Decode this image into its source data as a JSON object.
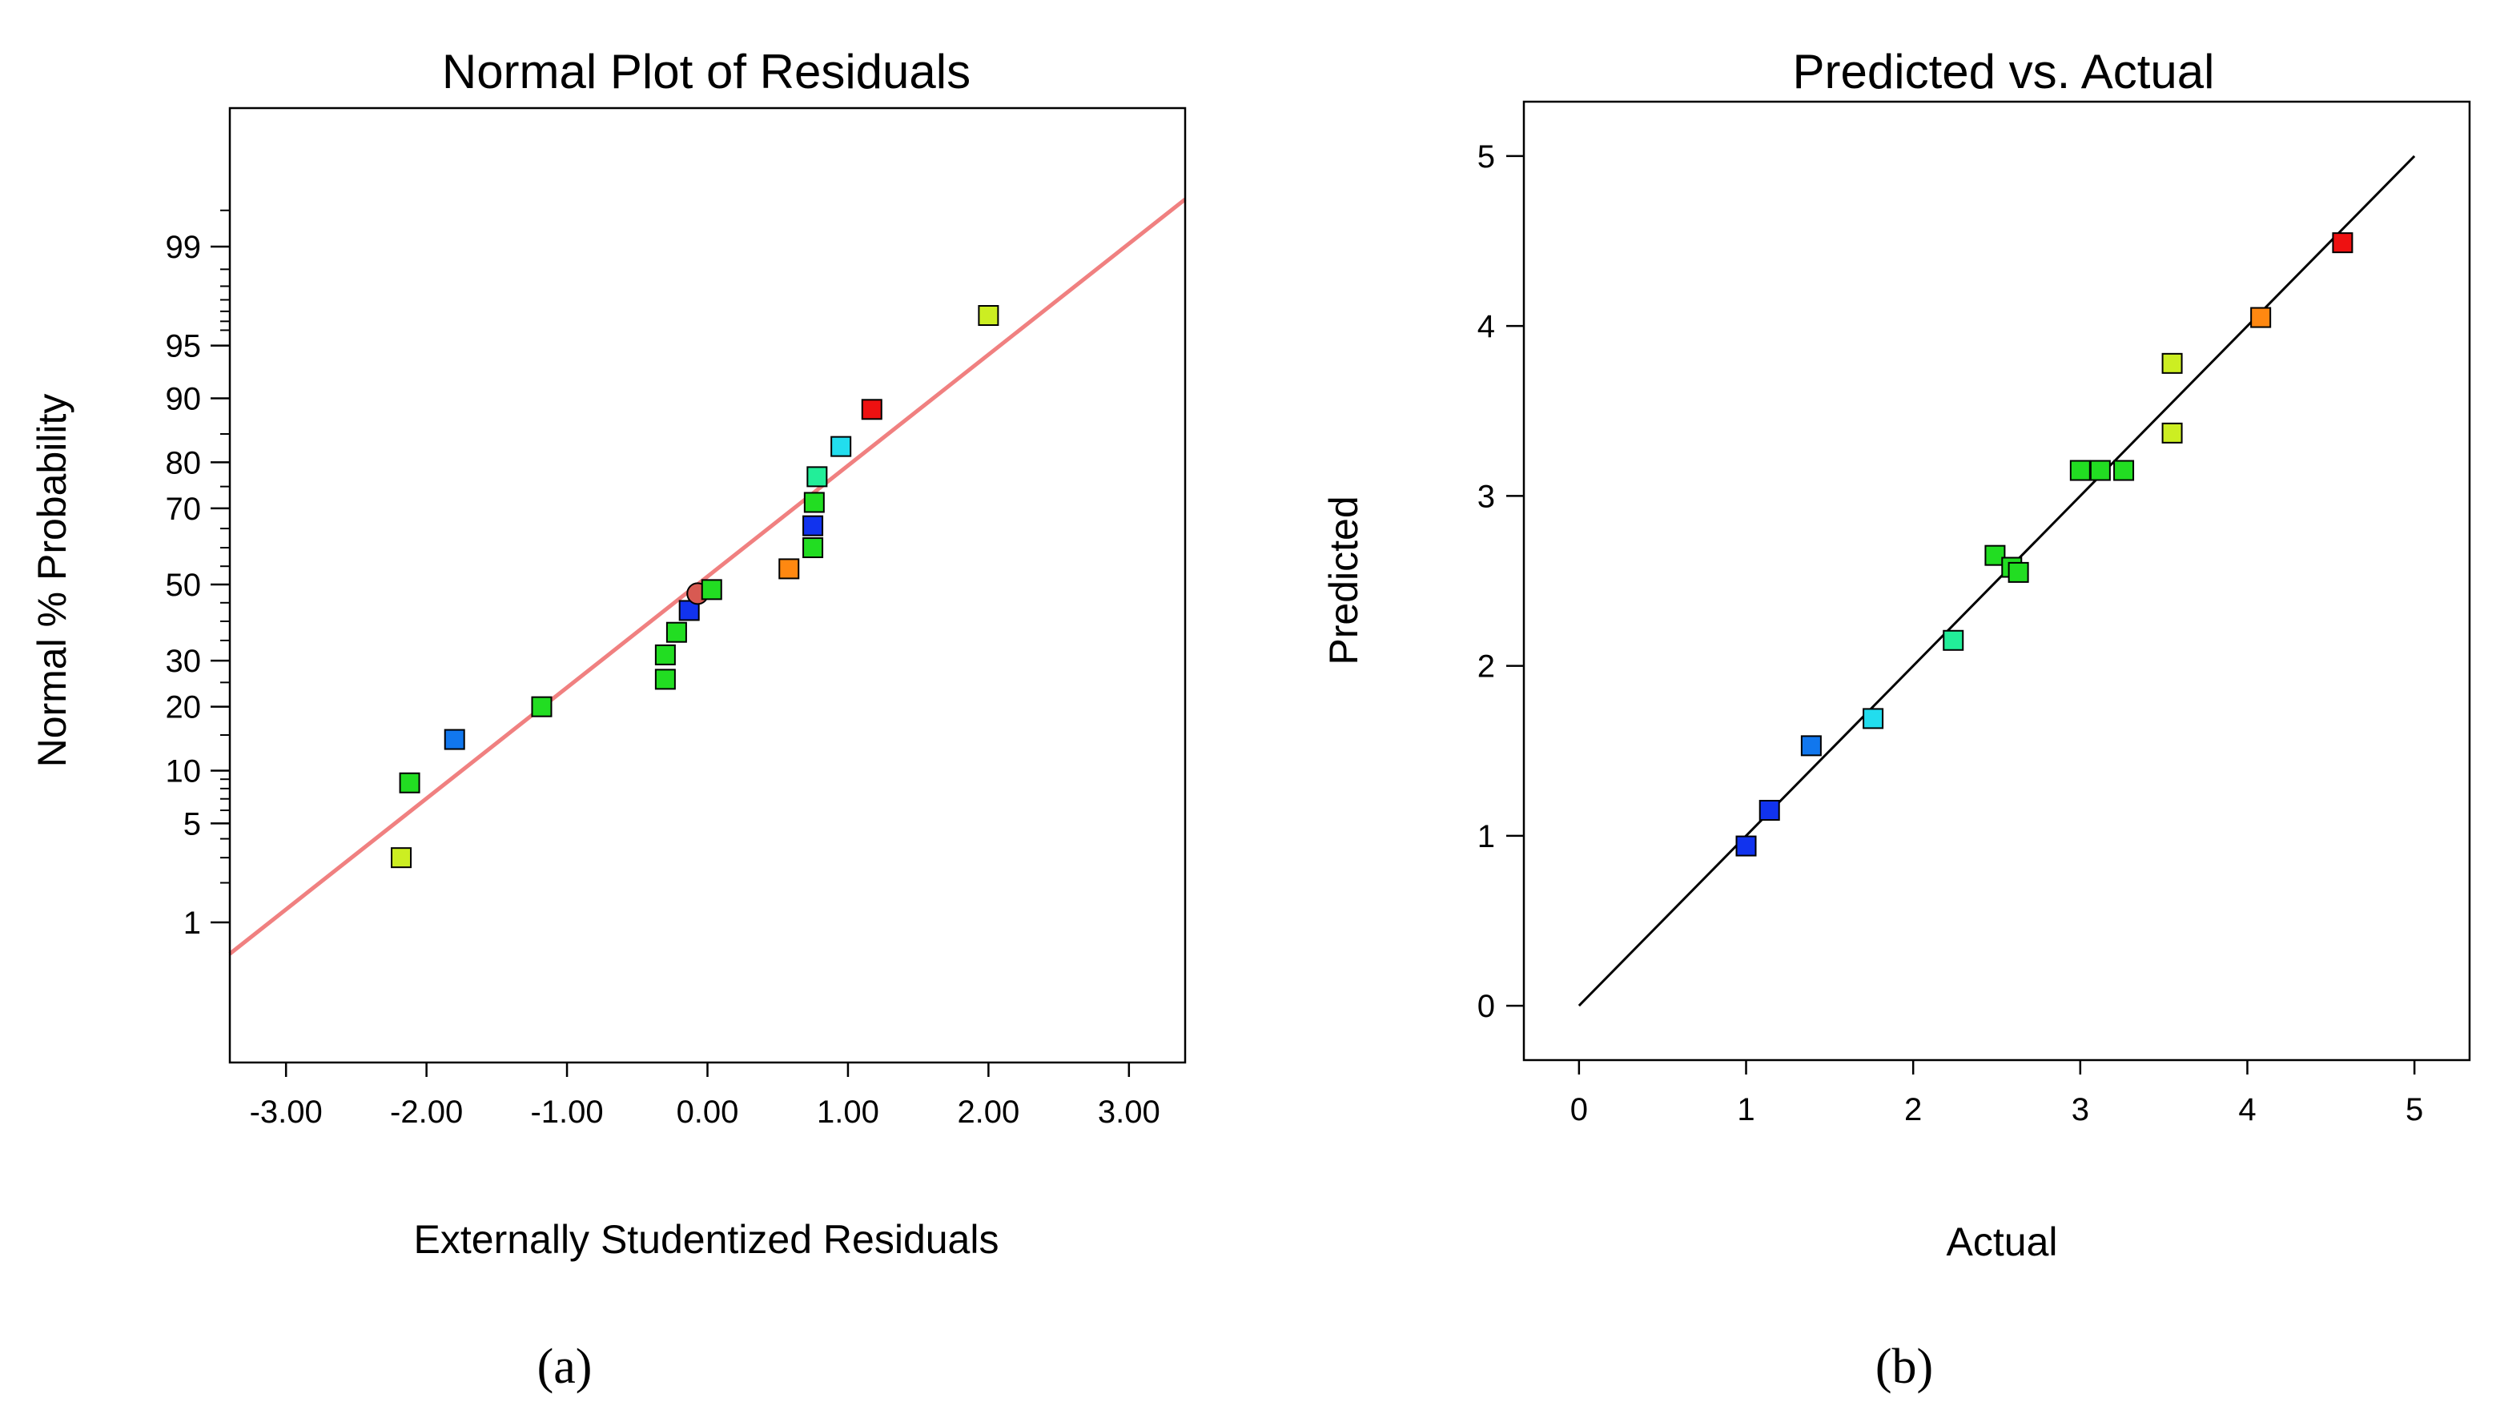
{
  "chart_data": [
    {
      "type": "scatter",
      "panel_label": "(a)",
      "title": "Normal Plot of Residuals",
      "xlabel": "Externally Studentized Residuals",
      "ylabel": "Normal % Probability",
      "xlim": [
        -3.4,
        3.4
      ],
      "x_ticks": [
        "-3.00",
        "-2.00",
        "-1.00",
        "0.00",
        "1.00",
        "2.00",
        "3.00"
      ],
      "x_tick_values": [
        -3,
        -2,
        -1,
        0,
        1,
        2,
        3
      ],
      "y_scale": "normal probability",
      "y_ticks": [
        "1",
        "5",
        "10",
        "20",
        "30",
        "50",
        "70",
        "80",
        "90",
        "95",
        "99"
      ],
      "y_tick_values": [
        1,
        5,
        10,
        20,
        30,
        50,
        70,
        80,
        90,
        95,
        99
      ],
      "grid": false,
      "reference_line": {
        "color": "#f08080",
        "from": [
          -3.4,
          0.55
        ],
        "to": [
          3.4,
          99.6
        ]
      },
      "points": [
        {
          "x": -2.18,
          "y": 3.0,
          "color": "#ccee22"
        },
        {
          "x": -2.12,
          "y": 8.6,
          "color": "#22dd22"
        },
        {
          "x": -1.8,
          "y": 14.3,
          "color": "#1177ee"
        },
        {
          "x": -1.18,
          "y": 20.0,
          "color": "#22dd22"
        },
        {
          "x": -0.3,
          "y": 25.7,
          "color": "#22dd22"
        },
        {
          "x": -0.3,
          "y": 31.4,
          "color": "#22dd22"
        },
        {
          "x": -0.22,
          "y": 37.1,
          "color": "#22dd22"
        },
        {
          "x": -0.13,
          "y": 42.9,
          "color": "#1133ee"
        },
        {
          "x": -0.07,
          "y": 47.5,
          "color": "#d85a52",
          "shape": "circle"
        },
        {
          "x": 0.03,
          "y": 48.6,
          "color": "#22dd22"
        },
        {
          "x": 0.58,
          "y": 54.3,
          "color": "#ff8811"
        },
        {
          "x": 0.75,
          "y": 60.0,
          "color": "#22dd22"
        },
        {
          "x": 0.75,
          "y": 65.7,
          "color": "#1133ee"
        },
        {
          "x": 0.76,
          "y": 71.4,
          "color": "#22dd22"
        },
        {
          "x": 0.78,
          "y": 77.1,
          "color": "#22ee99"
        },
        {
          "x": 0.95,
          "y": 82.9,
          "color": "#22ddee"
        },
        {
          "x": 1.17,
          "y": 88.6,
          "color": "#ee1111"
        },
        {
          "x": 2.0,
          "y": 96.8,
          "color": "#ccee22"
        }
      ]
    },
    {
      "type": "scatter",
      "panel_label": "(b)",
      "title": "Predicted vs. Actual",
      "xlabel": "Actual",
      "ylabel": "Predicted",
      "xlim": [
        -0.33,
        5.33
      ],
      "ylim": [
        -0.32,
        5.32
      ],
      "x_ticks": [
        "0",
        "1",
        "2",
        "3",
        "4",
        "5"
      ],
      "x_tick_values": [
        0,
        1,
        2,
        3,
        4,
        5
      ],
      "y_ticks": [
        "0",
        "1",
        "2",
        "3",
        "4",
        "5"
      ],
      "y_tick_values": [
        0,
        1,
        2,
        3,
        4,
        5
      ],
      "grid": false,
      "reference_line": {
        "color": "#000000",
        "from": [
          0,
          0
        ],
        "to": [
          5,
          5
        ]
      },
      "points": [
        {
          "x": 1.0,
          "y": 0.94,
          "color": "#1133ee"
        },
        {
          "x": 1.14,
          "y": 1.15,
          "color": "#1133ee"
        },
        {
          "x": 1.39,
          "y": 1.53,
          "color": "#1177ee"
        },
        {
          "x": 1.76,
          "y": 1.69,
          "color": "#22ddee"
        },
        {
          "x": 2.24,
          "y": 2.15,
          "color": "#22ee99"
        },
        {
          "x": 2.49,
          "y": 2.65,
          "color": "#22dd22"
        },
        {
          "x": 2.59,
          "y": 2.58,
          "color": "#22dd22"
        },
        {
          "x": 2.63,
          "y": 2.55,
          "color": "#22dd22"
        },
        {
          "x": 3.0,
          "y": 3.15,
          "color": "#22dd22"
        },
        {
          "x": 3.12,
          "y": 3.15,
          "color": "#22dd22"
        },
        {
          "x": 3.26,
          "y": 3.15,
          "color": "#22dd22"
        },
        {
          "x": 3.55,
          "y": 3.37,
          "color": "#ccee22"
        },
        {
          "x": 3.55,
          "y": 3.78,
          "color": "#ccee22"
        },
        {
          "x": 4.08,
          "y": 4.05,
          "color": "#ff8811"
        },
        {
          "x": 4.57,
          "y": 4.49,
          "color": "#ee1111"
        }
      ]
    }
  ]
}
